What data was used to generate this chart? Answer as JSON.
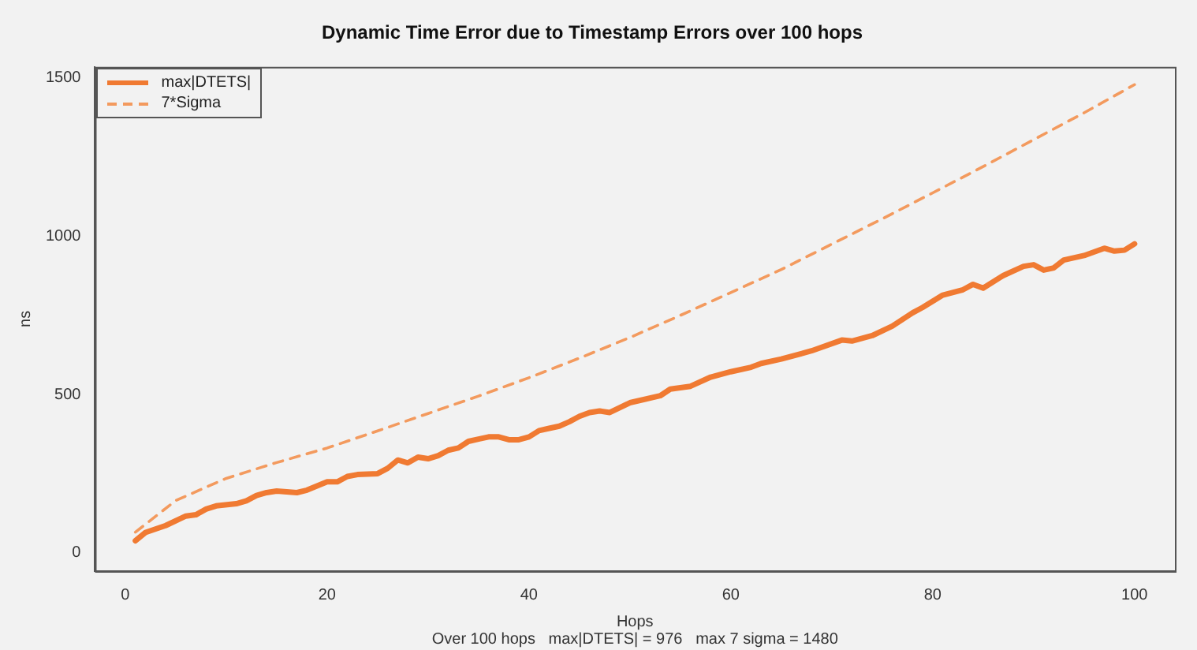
{
  "chart_data": {
    "type": "line",
    "title": "Dynamic Time Error due to Timestamp Errors over 100 hops",
    "xlabel": "Hops",
    "ylabel": "ns",
    "annotations": [
      "Over 100 hops   max|DTETS| = 976   max 7 sigma = 1480"
    ],
    "xlim": [
      -3,
      104
    ],
    "ylim": [
      -58,
      1535
    ],
    "xticks": [
      0,
      20,
      40,
      60,
      80,
      100
    ],
    "yticks": [
      0,
      500,
      1000,
      1500
    ],
    "grid": false,
    "legend": "top left",
    "series": [
      {
        "name": "max|DTETS|",
        "color": "#f07a32",
        "line_style": "solid",
        "x": [
          1,
          2,
          4,
          6,
          7,
          8,
          9,
          11,
          12,
          13,
          14,
          15,
          17,
          18,
          20,
          21,
          22,
          23,
          25,
          26,
          27,
          28,
          29,
          30,
          31,
          32,
          33,
          34,
          35,
          36,
          37,
          38,
          39,
          40,
          41,
          42,
          43,
          44,
          45,
          46,
          47,
          48,
          50,
          53,
          54,
          56,
          58,
          60,
          62,
          63,
          65,
          68,
          71,
          72,
          74,
          76,
          78,
          79,
          81,
          83,
          84,
          85,
          87,
          89,
          90,
          91,
          92,
          93,
          95,
          97,
          98,
          99,
          100
        ],
        "values": [
          38,
          64,
          86,
          116,
          120,
          138,
          148,
          155,
          164,
          181,
          190,
          195,
          190,
          198,
          224,
          224,
          241,
          247,
          250,
          267,
          293,
          284,
          302,
          297,
          307,
          324,
          331,
          352,
          359,
          366,
          366,
          357,
          357,
          366,
          386,
          393,
          400,
          414,
          431,
          443,
          448,
          443,
          474,
          496,
          517,
          526,
          555,
          572,
          586,
          598,
          612,
          638,
          672,
          669,
          686,
          716,
          758,
          775,
          814,
          831,
          848,
          836,
          876,
          905,
          910,
          893,
          900,
          925,
          939,
          962,
          953,
          956,
          976
        ]
      },
      {
        "name": "7*Sigma",
        "color": "#f39a5e",
        "line_style": "dashed",
        "x": [
          1,
          5,
          10,
          15,
          20,
          25,
          30,
          35,
          40,
          45,
          50,
          55,
          60,
          65,
          70,
          75,
          80,
          85,
          90,
          95,
          100
        ],
        "values": [
          65,
          165,
          235,
          285,
          331,
          385,
          440,
          495,
          553,
          615,
          680,
          750,
          822,
          895,
          975,
          1055,
          1137,
          1220,
          1305,
          1390,
          1479
        ]
      }
    ]
  }
}
